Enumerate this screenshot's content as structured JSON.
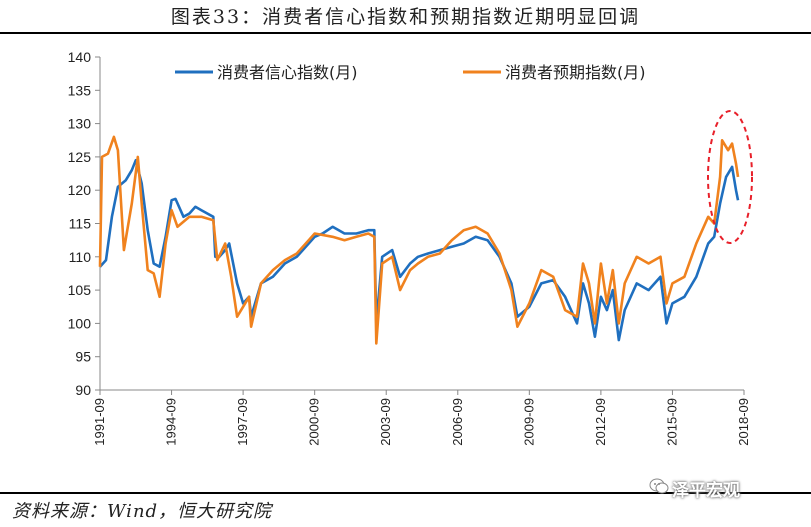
{
  "header": {
    "title": "图表33：消费者信心指数和预期指数近期明显回调"
  },
  "footer": {
    "source": "资料来源：Wind，恒大研究院",
    "watermark": "泽平宏观"
  },
  "chart_data": {
    "type": "line",
    "title": "",
    "xlabel": "",
    "ylabel": "",
    "ylim": [
      90,
      140
    ],
    "yticks": [
      90,
      95,
      100,
      105,
      110,
      115,
      120,
      125,
      130,
      135,
      140
    ],
    "xticks": [
      "1991-09",
      "1994-09",
      "1997-09",
      "2000-09",
      "2003-09",
      "2006-09",
      "2009-09",
      "2012-09",
      "2015-09",
      "2018-09"
    ],
    "xlim": [
      "1991-09",
      "2018-09"
    ],
    "legend_position": "top",
    "annotation": "dashed red ellipse highlighting 2017-2018 peak",
    "colors": {
      "confidence": "#1F6FBF",
      "expectation": "#F0821E",
      "annotation": "#E8202A"
    },
    "series": [
      {
        "name": "消费者信心指数(月)",
        "points": [
          [
            "1991-09",
            108.5
          ],
          [
            "1991-12",
            109.5
          ],
          [
            "1992-03",
            116
          ],
          [
            "1992-06",
            120.5
          ],
          [
            "1992-10",
            121.5
          ],
          [
            "1993-01",
            123
          ],
          [
            "1993-03",
            124.5
          ],
          [
            "1993-06",
            121
          ],
          [
            "1993-09",
            114
          ],
          [
            "1993-12",
            109
          ],
          [
            "1994-03",
            108.5
          ],
          [
            "1994-06",
            113
          ],
          [
            "1994-09",
            118.5
          ],
          [
            "1994-11",
            118.7
          ],
          [
            "1995-03",
            116
          ],
          [
            "1995-06",
            116.5
          ],
          [
            "1995-09",
            117.5
          ],
          [
            "1995-12",
            117
          ],
          [
            "1996-03",
            116.5
          ],
          [
            "1996-06",
            116
          ],
          [
            "1996-07",
            110
          ],
          [
            "1996-09",
            110
          ],
          [
            "1996-12",
            111
          ],
          [
            "1997-02",
            112
          ],
          [
            "1997-06",
            106
          ],
          [
            "1997-09",
            103
          ],
          [
            "1997-12",
            104
          ],
          [
            "1998-01",
            101
          ],
          [
            "1998-06",
            106
          ],
          [
            "1998-12",
            107
          ],
          [
            "1999-06",
            109
          ],
          [
            "1999-12",
            110
          ],
          [
            "2000-06",
            112
          ],
          [
            "2000-09",
            113
          ],
          [
            "2001-01",
            113.5
          ],
          [
            "2001-06",
            114.5
          ],
          [
            "2001-12",
            113.5
          ],
          [
            "2002-06",
            113.5
          ],
          [
            "2002-12",
            114
          ],
          [
            "2003-03",
            114
          ],
          [
            "2003-04",
            100
          ],
          [
            "2003-07",
            110
          ],
          [
            "2003-12",
            111
          ],
          [
            "2004-04",
            107
          ],
          [
            "2004-09",
            109
          ],
          [
            "2005-01",
            110
          ],
          [
            "2005-06",
            110.5
          ],
          [
            "2005-12",
            111
          ],
          [
            "2006-06",
            111.5
          ],
          [
            "2006-12",
            112
          ],
          [
            "2007-06",
            113
          ],
          [
            "2007-12",
            112.5
          ],
          [
            "2008-06",
            110
          ],
          [
            "2008-12",
            106
          ],
          [
            "2009-03",
            101
          ],
          [
            "2009-09",
            102.5
          ],
          [
            "2010-03",
            106
          ],
          [
            "2010-09",
            106.5
          ],
          [
            "2011-03",
            104
          ],
          [
            "2011-09",
            100
          ],
          [
            "2011-12",
            106
          ],
          [
            "2012-03",
            103
          ],
          [
            "2012-06",
            98
          ],
          [
            "2012-09",
            104
          ],
          [
            "2012-12",
            102
          ],
          [
            "2013-03",
            105
          ],
          [
            "2013-06",
            97.5
          ],
          [
            "2013-09",
            102
          ],
          [
            "2014-03",
            106
          ],
          [
            "2014-09",
            105
          ],
          [
            "2015-03",
            107
          ],
          [
            "2015-06",
            100
          ],
          [
            "2015-09",
            103
          ],
          [
            "2016-03",
            104
          ],
          [
            "2016-09",
            107
          ],
          [
            "2017-03",
            112
          ],
          [
            "2017-06",
            113
          ],
          [
            "2017-09",
            118
          ],
          [
            "2017-12",
            122
          ],
          [
            "2018-03",
            123.5
          ],
          [
            "2018-05",
            120
          ],
          [
            "2018-06",
            118.5
          ]
        ]
      },
      {
        "name": "消费者预期指数(月)",
        "points": [
          [
            "1991-09",
            108.5
          ],
          [
            "1991-10",
            125
          ],
          [
            "1992-01",
            125.5
          ],
          [
            "1992-04",
            128
          ],
          [
            "1992-06",
            126
          ],
          [
            "1992-09",
            111
          ],
          [
            "1993-01",
            118
          ],
          [
            "1993-04",
            125
          ],
          [
            "1993-06",
            118
          ],
          [
            "1993-09",
            108
          ],
          [
            "1993-12",
            107.5
          ],
          [
            "1994-03",
            104
          ],
          [
            "1994-06",
            112
          ],
          [
            "1994-09",
            117
          ],
          [
            "1994-12",
            114.5
          ],
          [
            "1995-06",
            116
          ],
          [
            "1995-12",
            116
          ],
          [
            "1996-06",
            115.5
          ],
          [
            "1996-08",
            109.5
          ],
          [
            "1996-12",
            112
          ],
          [
            "1997-03",
            107
          ],
          [
            "1997-06",
            101
          ],
          [
            "1997-09",
            102.5
          ],
          [
            "1997-12",
            104
          ],
          [
            "1998-01",
            99.5
          ],
          [
            "1998-06",
            106
          ],
          [
            "1998-12",
            108
          ],
          [
            "1999-06",
            109.5
          ],
          [
            "1999-12",
            110.5
          ],
          [
            "2000-06",
            112.5
          ],
          [
            "2000-09",
            113.5
          ],
          [
            "2001-06",
            113
          ],
          [
            "2001-12",
            112.5
          ],
          [
            "2002-06",
            113
          ],
          [
            "2002-12",
            113.5
          ],
          [
            "2003-03",
            113
          ],
          [
            "2003-04",
            97
          ],
          [
            "2003-07",
            109
          ],
          [
            "2003-12",
            110
          ],
          [
            "2004-04",
            105
          ],
          [
            "2004-09",
            108
          ],
          [
            "2005-01",
            109
          ],
          [
            "2005-06",
            110
          ],
          [
            "2005-12",
            110.5
          ],
          [
            "2006-06",
            112.5
          ],
          [
            "2006-12",
            114
          ],
          [
            "2007-06",
            114.5
          ],
          [
            "2007-12",
            113.5
          ],
          [
            "2008-06",
            110.5
          ],
          [
            "2008-12",
            105
          ],
          [
            "2009-03",
            99.5
          ],
          [
            "2009-09",
            103
          ],
          [
            "2010-03",
            108
          ],
          [
            "2010-09",
            107
          ],
          [
            "2011-03",
            102
          ],
          [
            "2011-09",
            101
          ],
          [
            "2011-12",
            109
          ],
          [
            "2012-03",
            106
          ],
          [
            "2012-06",
            100
          ],
          [
            "2012-09",
            109
          ],
          [
            "2012-12",
            103
          ],
          [
            "2013-03",
            108
          ],
          [
            "2013-06",
            100
          ],
          [
            "2013-09",
            106
          ],
          [
            "2014-03",
            110
          ],
          [
            "2014-09",
            109
          ],
          [
            "2015-03",
            110
          ],
          [
            "2015-06",
            103
          ],
          [
            "2015-09",
            106
          ],
          [
            "2016-03",
            107
          ],
          [
            "2016-09",
            112
          ],
          [
            "2017-03",
            116
          ],
          [
            "2017-06",
            115
          ],
          [
            "2017-09",
            122
          ],
          [
            "2017-10",
            127.5
          ],
          [
            "2018-01",
            126
          ],
          [
            "2018-03",
            127
          ],
          [
            "2018-05",
            124
          ],
          [
            "2018-06",
            122
          ]
        ]
      }
    ]
  }
}
